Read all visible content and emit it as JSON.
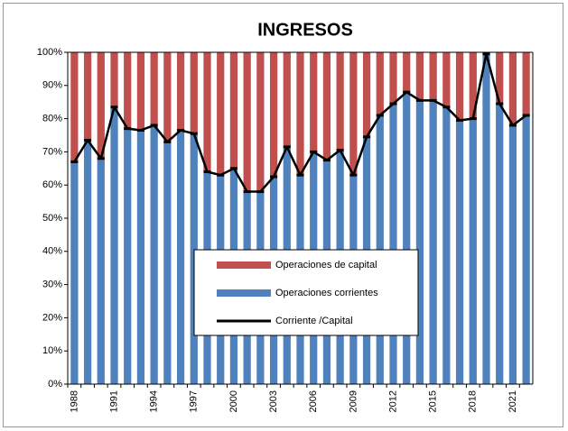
{
  "chart_data": {
    "type": "bar",
    "stacked": true,
    "title": "INGRESOS",
    "categories": [
      "1988",
      null,
      null,
      "1991",
      null,
      null,
      "1994",
      null,
      null,
      "1997",
      null,
      null,
      "2000",
      null,
      null,
      "2003",
      null,
      null,
      "2006",
      null,
      null,
      "2009",
      null,
      null,
      "2012",
      null,
      null,
      "2015",
      null,
      null,
      "2018",
      null,
      null,
      "2021",
      null
    ],
    "series": [
      {
        "name": "Operaciones corrientes",
        "color": "#4f81bd",
        "values": [
          67,
          73.5,
          68,
          83.5,
          77,
          76.5,
          78,
          73,
          76.5,
          75.5,
          64,
          63,
          65,
          58,
          58,
          62.5,
          71.5,
          63,
          70,
          67.5,
          70.5,
          63,
          74.5,
          81,
          84.5,
          88,
          85.5,
          85.5,
          83.5,
          79.5,
          80,
          99.5,
          84.5,
          78,
          81
        ]
      },
      {
        "name": "Operaciones de capital",
        "color": "#c0504d",
        "values": [
          33,
          26.5,
          32,
          16.5,
          23,
          23.5,
          22,
          27,
          23.5,
          24.5,
          36,
          37,
          35,
          42,
          42,
          37.5,
          28.5,
          37,
          30,
          32.5,
          29.5,
          37,
          25.5,
          19,
          15.5,
          12,
          14.5,
          14.5,
          16.5,
          20.5,
          20,
          0.5,
          15.5,
          22,
          19
        ]
      },
      {
        "name": "Corriente /Capital",
        "type": "line",
        "color": "#000000",
        "values": [
          67,
          73.5,
          68,
          83.5,
          77,
          76.5,
          78,
          73,
          76.5,
          75.5,
          64,
          63,
          65,
          58,
          58,
          62.5,
          71.5,
          63,
          70,
          67.5,
          70.5,
          63,
          74.5,
          81,
          84.5,
          88,
          85.5,
          85.5,
          83.5,
          79.5,
          80,
          99.5,
          84.5,
          78,
          81
        ]
      }
    ],
    "legend_order": [
      1,
      0,
      2
    ],
    "ylim": [
      0,
      100
    ],
    "yticks": [
      {
        "value": 0,
        "label": "0%"
      },
      {
        "value": 10,
        "label": "10%"
      },
      {
        "value": 20,
        "label": "20%"
      },
      {
        "value": 30,
        "label": "30%"
      },
      {
        "value": 40,
        "label": "40%"
      },
      {
        "value": 50,
        "label": "50%"
      },
      {
        "value": 60,
        "label": "60%"
      },
      {
        "value": 70,
        "label": "70%"
      },
      {
        "value": 80,
        "label": "80%"
      },
      {
        "value": 90,
        "label": "90%"
      },
      {
        "value": 100,
        "label": "100%"
      }
    ],
    "grid": false
  }
}
